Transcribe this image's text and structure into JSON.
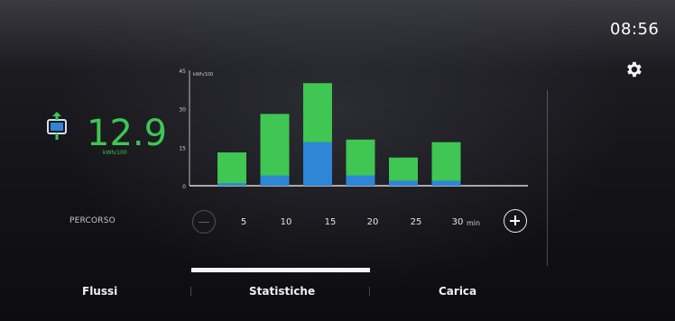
{
  "clock": "08:56",
  "energy": {
    "value": "12.9",
    "unit": "kWh/100"
  },
  "route_label": "PERCORSO",
  "timeline": {
    "ticks": [
      "5",
      "10",
      "15",
      "20",
      "25",
      "30"
    ],
    "unit": "min"
  },
  "tabs": [
    {
      "label": "Flussi",
      "active": false
    },
    {
      "label": "Statistiche",
      "active": true
    },
    {
      "label": "Carica",
      "active": false
    }
  ],
  "colors": {
    "green": "#3fc653",
    "blue": "#2f86d6",
    "accent": "#3fc653"
  },
  "icons": {
    "settings": "gear-icon",
    "energy": "battery-energy-icon"
  },
  "chart_data": {
    "type": "bar",
    "ylabel": "kWh/100",
    "yticks": [
      "0",
      "15",
      "30",
      "45"
    ],
    "ylim": [
      0,
      45
    ],
    "categories": [
      "5",
      "10",
      "15",
      "20",
      "25",
      "30"
    ],
    "series": [
      {
        "values": [
          13,
          28,
          40,
          18,
          11,
          17
        ],
        "color": "#3fc653"
      },
      {
        "values": [
          1,
          4,
          17,
          4,
          2,
          2
        ],
        "color": "#2f86d6"
      }
    ],
    "grid": false
  }
}
